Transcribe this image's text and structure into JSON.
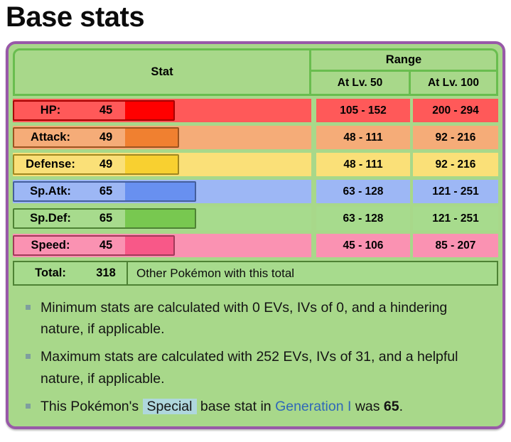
{
  "page": {
    "title": "Base stats"
  },
  "table": {
    "header": {
      "stat": "Stat",
      "range": "Range",
      "lv50": "At Lv. 50",
      "lv100": "At Lv. 100"
    },
    "rows": [
      {
        "label": "HP:",
        "value": 45,
        "range_lv50": "105 - 152",
        "range_lv100": "200 - 294",
        "colors": {
          "light": "#FF5959",
          "dark": "#FF0000",
          "edge": "#A60000"
        }
      },
      {
        "label": "Attack:",
        "value": 49,
        "range_lv50": "48 - 111",
        "range_lv100": "92 - 216",
        "colors": {
          "light": "#F5AC78",
          "dark": "#F08030",
          "edge": "#9C531F"
        }
      },
      {
        "label": "Defense:",
        "value": 49,
        "range_lv50": "48 - 111",
        "range_lv100": "92 - 216",
        "colors": {
          "light": "#FAE078",
          "dark": "#F8D030",
          "edge": "#A1871F"
        }
      },
      {
        "label": "Sp.Atk:",
        "value": 65,
        "range_lv50": "63 - 128",
        "range_lv100": "121 - 251",
        "colors": {
          "light": "#9DB7F5",
          "dark": "#6890F0",
          "edge": "#445E9C"
        }
      },
      {
        "label": "Sp.Def:",
        "value": 65,
        "range_lv50": "63 - 128",
        "range_lv100": "121 - 251",
        "colors": {
          "light": "#A7DB8D",
          "dark": "#78C850",
          "edge": "#4E8234"
        }
      },
      {
        "label": "Speed:",
        "value": 45,
        "range_lv50": "45 - 106",
        "range_lv100": "85 - 207",
        "colors": {
          "light": "#FA92B2",
          "dark": "#F85888",
          "edge": "#A13959"
        }
      }
    ],
    "total": {
      "label": "Total:",
      "value": 318,
      "note": "Other Pokémon with this total"
    }
  },
  "notes": {
    "item1": "Minimum stats are calculated with 0 EVs, IVs of 0, and a hindering nature, if applicable.",
    "item2": "Maximum stats are calculated with 252 EVs, IVs of 31, and a helpful nature, if applicable.",
    "item3": {
      "pre": "This Pokémon's ",
      "special": "Special",
      "mid": " base stat in ",
      "link": "Generation I",
      "post": " was ",
      "value": "65",
      "end": "."
    }
  },
  "chart_data": {
    "type": "bar",
    "categories": [
      "HP",
      "Attack",
      "Defense",
      "Sp.Atk",
      "Sp.Def",
      "Speed"
    ],
    "values": [
      45,
      49,
      49,
      65,
      65,
      45
    ],
    "title": "Base stats",
    "total": 318,
    "xlim": [
      0,
      255
    ]
  },
  "colors": {
    "card_border": "#9859A8",
    "card_bg": "#A8D88A",
    "grid_line": "#69BD4F",
    "total_border": "#4E8234",
    "link_blue": "#3068B8",
    "highlight_blue": "#AFD7DD",
    "bullet_gray": "#7E9E9E"
  }
}
